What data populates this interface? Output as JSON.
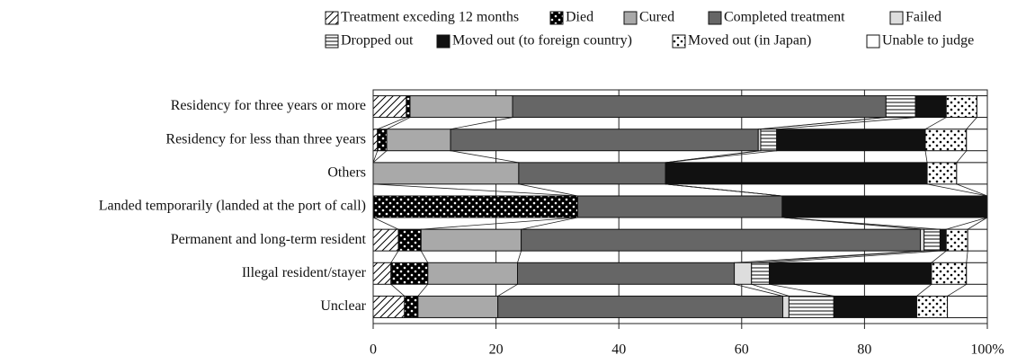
{
  "chart_data": {
    "type": "stacked_bar_horizontal",
    "categories": [
      "Residency for three years or more",
      "Residency for less than three years",
      "Others",
      "Landed temporarily (landed at the port of call)",
      "Permanent and long-term resident",
      "Illegal resident/stayer",
      "Unclear"
    ],
    "series": [
      {
        "name": "Treatment exceding 12 months",
        "color": "#ffffff",
        "pattern": "diagonal",
        "values": [
          5.4,
          0.7,
          0,
          0,
          4.1,
          2.9,
          5.1
        ]
      },
      {
        "name": "Died",
        "color": "#000000",
        "pattern": "dots",
        "values": [
          0.6,
          1.5,
          0,
          33.3,
          3.7,
          6.0,
          2.2
        ]
      },
      {
        "name": "Cured",
        "color": "#a9a9a9",
        "values": [
          16.7,
          10.4,
          23.7,
          0,
          16.3,
          14.6,
          13.0
        ]
      },
      {
        "name": "Completed treatment",
        "color": "#666666",
        "values": [
          60.8,
          50.1,
          23.9,
          33.3,
          65.0,
          35.3,
          46.4
        ]
      },
      {
        "name": "Failed",
        "color": "#dddddd",
        "values": [
          0,
          0.4,
          0,
          0,
          0.6,
          2.8,
          1.0
        ]
      },
      {
        "name": "Dropped out",
        "color": "#ffffff",
        "pattern": "horizontal",
        "values": [
          4.8,
          2.6,
          0,
          0,
          2.6,
          2.9,
          7.3
        ]
      },
      {
        "name": "Moved out (to foreign country)",
        "color": "#111111",
        "values": [
          5.0,
          24.2,
          42.6,
          33.4,
          1.0,
          26.4,
          13.5
        ]
      },
      {
        "name": "Moved out (in Japan)",
        "color": "#ffffff",
        "pattern": "dots",
        "values": [
          5.0,
          6.7,
          4.8,
          0,
          3.5,
          5.7,
          5.0
        ]
      },
      {
        "name": "Unable to judge",
        "color": "#ffffff",
        "values": [
          1.7,
          3.4,
          5.0,
          0,
          3.2,
          3.4,
          6.5
        ]
      }
    ],
    "xlim": [
      0,
      100
    ],
    "xticks": [
      0,
      20,
      40,
      60,
      80,
      {
        "value": 100,
        "label": "100%"
      }
    ],
    "grid": true
  }
}
